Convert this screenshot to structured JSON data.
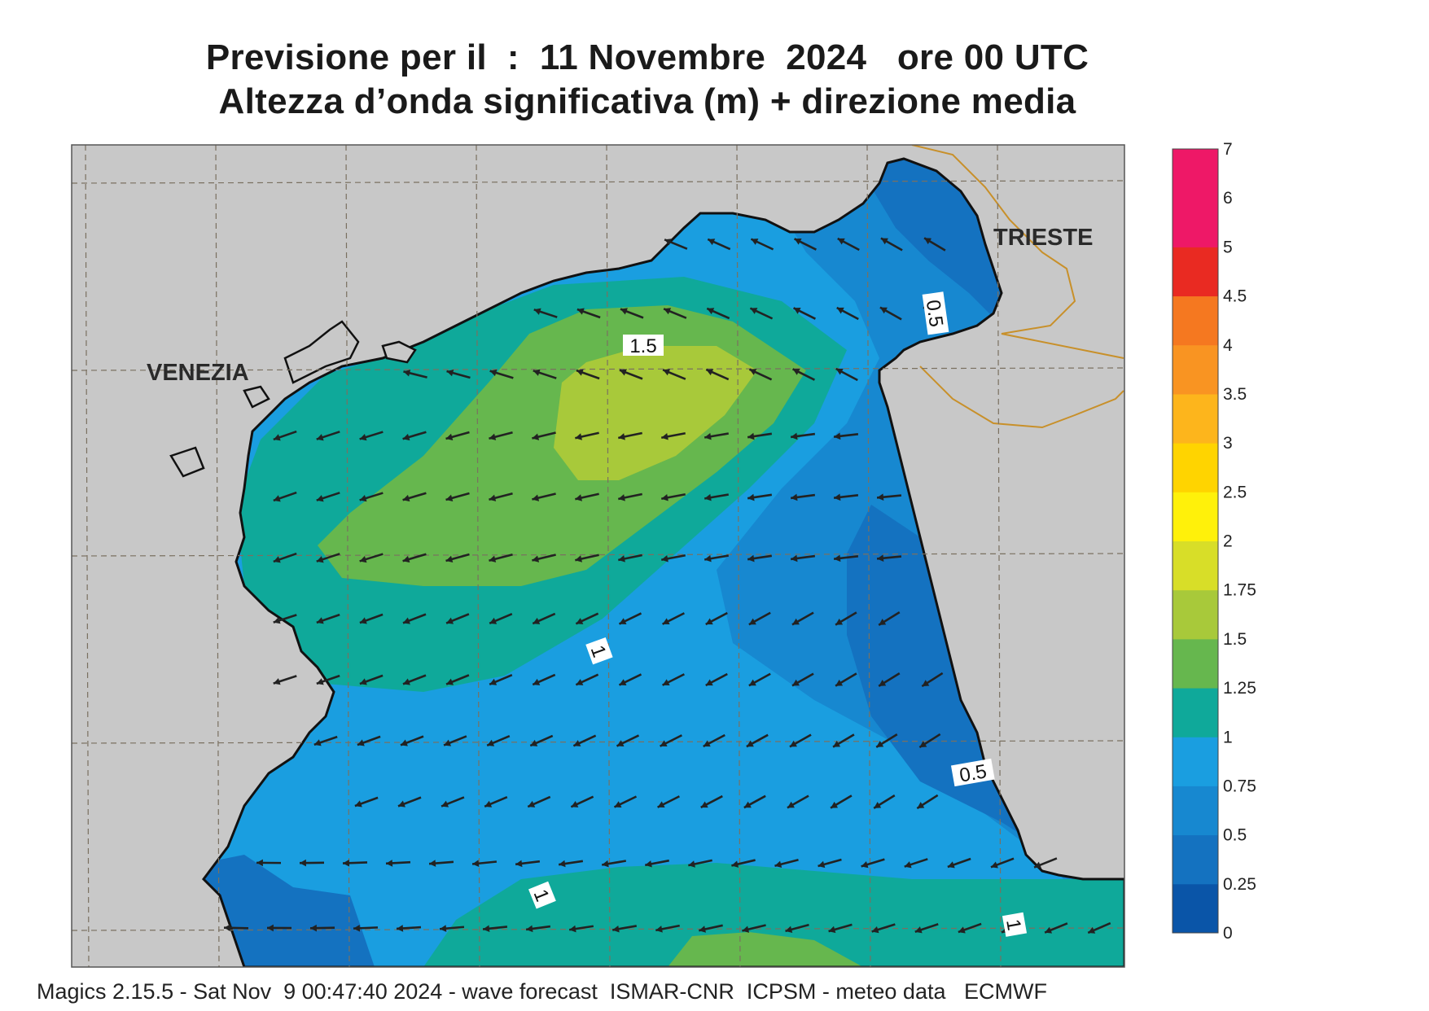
{
  "title_line1": "Previsione per il  :  11 Novembre  2024   ore 00 UTC",
  "title_line2": "Altezza d’onda significativa (m) + direzione media",
  "cities": [
    {
      "name": "VENEZIA"
    },
    {
      "name": "TRIESTE"
    }
  ],
  "contour_labels": [
    "1.5",
    "1",
    "0.5",
    "0.5",
    "1",
    "1"
  ],
  "colorbar": {
    "labels": [
      "0",
      "0.25",
      "0.5",
      "0.75",
      "1",
      "1.25",
      "1.5",
      "1.75",
      "2",
      "2.5",
      "3",
      "3.5",
      "4",
      "4.5",
      "5",
      "6",
      "7"
    ],
    "colors": [
      "#0a55a8",
      "#1472c0",
      "#1788d0",
      "#1a9ee0",
      "#0fa99a",
      "#66b74e",
      "#a8c93a",
      "#d8de28",
      "#fff10a",
      "#ffd400",
      "#fdb51c",
      "#f99422",
      "#f57820",
      "#e92a22",
      "#ee1867",
      "#ee1867"
    ]
  },
  "wave_arrows": {
    "direction": "toward south-west",
    "color": "#222222"
  },
  "land_color": "#c8c8c8",
  "footer": "Magics 2.15.5 - Sat Nov  9 00:47:40 2024 - wave forecast  ISMAR-CNR  ICPSM - meteo data   ECMWF"
}
